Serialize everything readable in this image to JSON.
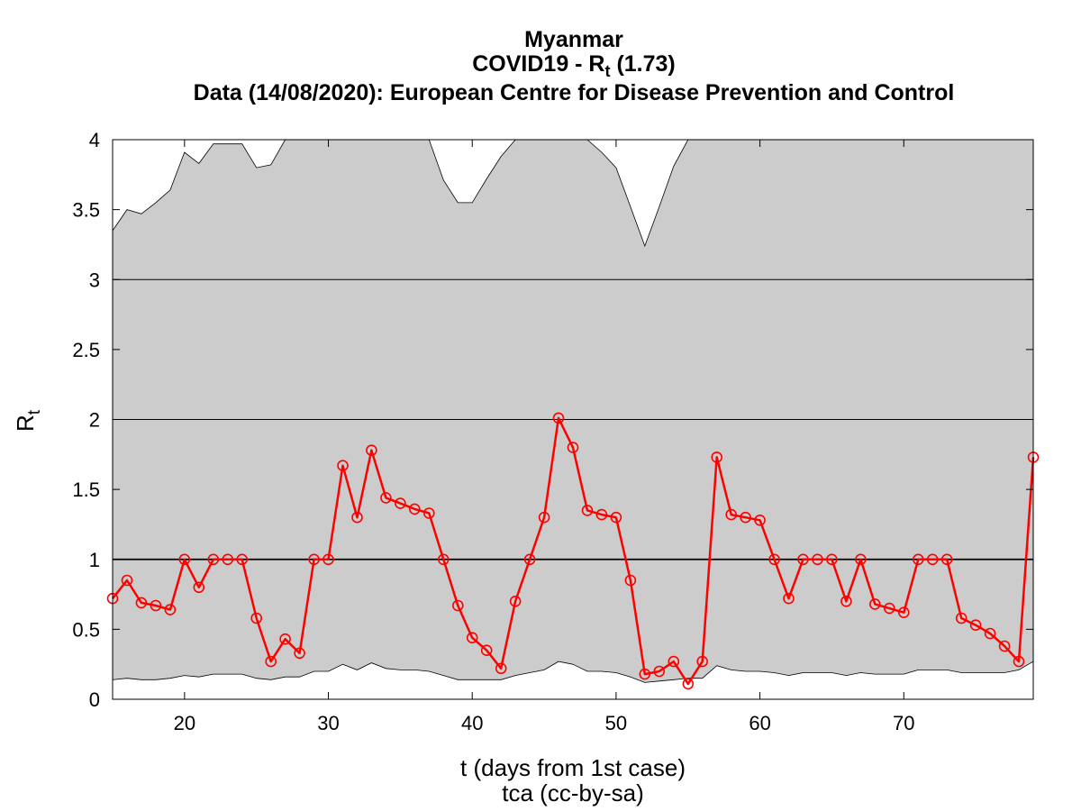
{
  "chart_data": {
    "type": "line",
    "title_lines": {
      "line1": "Myanmar",
      "line2_prefix": "COVID19 - R",
      "line2_sub": "t",
      "line2_suffix": " (1.73)",
      "line3": "Data (14/08/2020): European Centre for Disease Prevention and Control"
    },
    "xlabel": "t (days from 1st case)",
    "xlabel2": "tca (cc-by-sa)",
    "ylabel": "R",
    "ylabel_sub": "t",
    "xlim": [
      15,
      79
    ],
    "ylim": [
      0,
      4
    ],
    "xticks": [
      20,
      30,
      40,
      50,
      60,
      70
    ],
    "yticks": [
      0,
      0.5,
      1,
      1.5,
      2,
      2.5,
      3,
      3.5,
      4
    ],
    "ytick_labels": [
      "0",
      "0.5",
      "1",
      "1.5",
      "2",
      "2.5",
      "3",
      "3.5",
      "4"
    ],
    "hlines": [
      {
        "y": 1,
        "color": "#000000",
        "emphasis": "strong"
      },
      {
        "y": 2,
        "color": "#000000",
        "emphasis": "thin"
      },
      {
        "y": 3,
        "color": "#000000",
        "emphasis": "thin"
      }
    ],
    "colors": {
      "series": "#ff0000",
      "band_fill": "#cccccc",
      "band_edge": "#000000"
    },
    "series": [
      {
        "x": [
          15,
          16,
          17,
          18,
          19,
          20,
          21,
          22,
          23,
          24,
          25,
          26,
          27,
          28,
          29,
          30,
          31,
          32,
          33,
          34,
          35,
          36,
          37,
          38,
          39,
          40,
          41,
          42,
          43,
          44,
          45,
          46,
          47,
          48,
          49,
          50,
          51,
          52,
          53,
          54,
          55,
          56,
          57,
          58,
          59,
          60,
          61,
          62,
          63,
          64,
          65,
          66,
          67,
          68,
          69,
          70,
          71,
          72,
          73,
          74,
          75,
          76,
          77,
          78,
          79
        ],
        "values": [
          0.72,
          0.85,
          0.69,
          0.67,
          0.64,
          1.0,
          0.8,
          1.0,
          1.0,
          1.0,
          0.58,
          0.27,
          0.43,
          0.33,
          1.0,
          1.0,
          1.67,
          1.3,
          1.78,
          1.44,
          1.4,
          1.36,
          1.33,
          1.0,
          0.67,
          0.44,
          0.35,
          0.22,
          0.7,
          1.0,
          1.3,
          2.01,
          1.8,
          1.35,
          1.32,
          1.3,
          0.85,
          0.18,
          0.2,
          0.27,
          0.11,
          0.27,
          1.73,
          1.32,
          1.3,
          1.28,
          1.0,
          0.72,
          1.0,
          1.0,
          1.0,
          0.7,
          1.0,
          0.68,
          0.65,
          0.62,
          1.0,
          1.0,
          1.0,
          0.58,
          0.53,
          0.47,
          0.38,
          0.27,
          1.73
        ]
      }
    ],
    "band": {
      "x": [
        15,
        16,
        17,
        18,
        19,
        20,
        21,
        22,
        23,
        24,
        25,
        26,
        27,
        28,
        29,
        30,
        31,
        32,
        33,
        34,
        35,
        36,
        37,
        38,
        39,
        40,
        41,
        42,
        43,
        44,
        45,
        46,
        47,
        48,
        49,
        50,
        51,
        52,
        53,
        54,
        55,
        56,
        57,
        58,
        59,
        60,
        61,
        62,
        63,
        64,
        65,
        66,
        67,
        68,
        69,
        70,
        71,
        72,
        73,
        74,
        75,
        76,
        77,
        78,
        79
      ],
      "upper": [
        3.35,
        3.5,
        3.47,
        3.55,
        3.64,
        3.91,
        3.83,
        3.97,
        3.97,
        3.97,
        3.8,
        3.82,
        4.0,
        4.0,
        4.0,
        4.0,
        4.0,
        4.0,
        4.0,
        4.0,
        4.0,
        4.0,
        4.0,
        3.71,
        3.55,
        3.55,
        3.72,
        3.88,
        4.0,
        4.0,
        4.0,
        4.0,
        4.0,
        4.0,
        3.91,
        3.8,
        3.52,
        3.24,
        3.52,
        3.81,
        4.0,
        4.0,
        4.0,
        4.0,
        4.0,
        4.0,
        4.0,
        4.0,
        4.0,
        4.0,
        4.0,
        4.0,
        4.0,
        4.0,
        4.0,
        4.0,
        4.0,
        4.0,
        4.0,
        4.0,
        4.0,
        4.0,
        4.0,
        4.0,
        4.0
      ],
      "lower": [
        0.14,
        0.15,
        0.14,
        0.14,
        0.15,
        0.17,
        0.16,
        0.18,
        0.18,
        0.18,
        0.15,
        0.14,
        0.16,
        0.16,
        0.2,
        0.2,
        0.25,
        0.21,
        0.26,
        0.22,
        0.21,
        0.21,
        0.2,
        0.17,
        0.14,
        0.14,
        0.14,
        0.14,
        0.17,
        0.19,
        0.21,
        0.27,
        0.25,
        0.2,
        0.2,
        0.19,
        0.16,
        0.12,
        0.13,
        0.14,
        0.15,
        0.15,
        0.24,
        0.21,
        0.2,
        0.2,
        0.19,
        0.17,
        0.19,
        0.19,
        0.19,
        0.17,
        0.19,
        0.18,
        0.18,
        0.18,
        0.21,
        0.21,
        0.21,
        0.19,
        0.19,
        0.19,
        0.19,
        0.21,
        0.27
      ]
    }
  }
}
